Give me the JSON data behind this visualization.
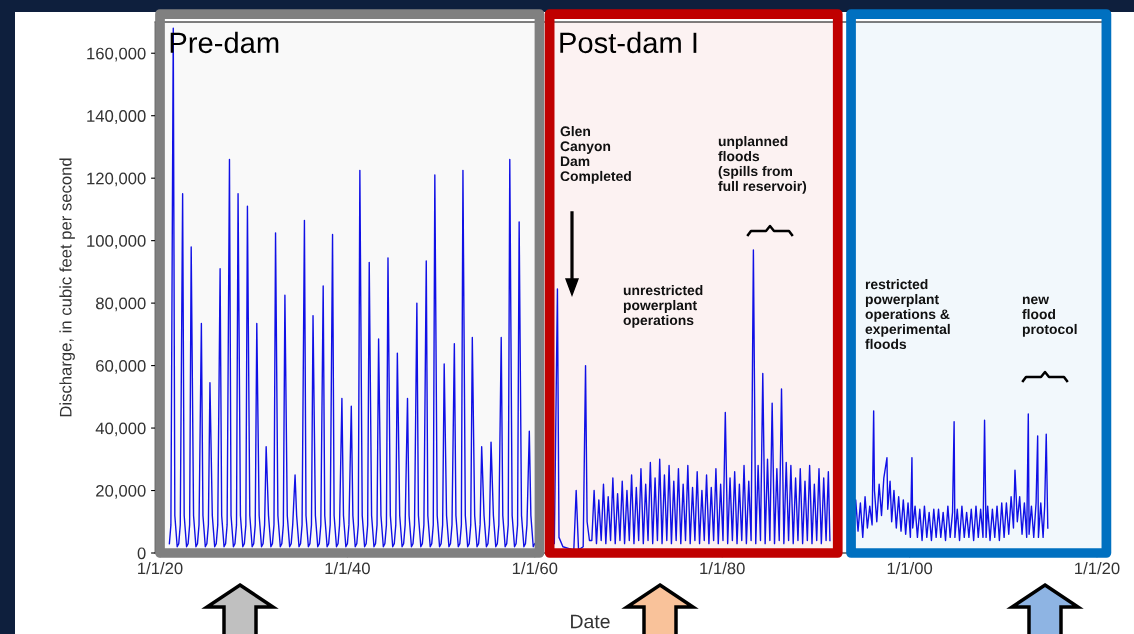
{
  "chart_data": {
    "type": "line",
    "ylabel": "Discharge, in cubic feet per second",
    "xlabel": "Date",
    "xlim": [
      "1919-07-01",
      "2021-03-01"
    ],
    "ylim": [
      0,
      170000
    ],
    "xticks": [
      {
        "value": "1920-01-01",
        "label": "1/1/20"
      },
      {
        "value": "1940-01-01",
        "label": "1/1/40"
      },
      {
        "value": "1960-01-01",
        "label": "1/1/60"
      },
      {
        "value": "1980-01-01",
        "label": "1/1/80"
      },
      {
        "value": "2000-01-01",
        "label": "1/1/00"
      },
      {
        "value": "2020-01-01",
        "label": "1/1/20"
      }
    ],
    "yticks": [
      0,
      {
        "value": 20000,
        "label": "20,000"
      },
      {
        "value": 40000,
        "label": "40,000"
      },
      {
        "value": 60000,
        "label": "60,000"
      },
      {
        "value": 80000,
        "label": "80,000"
      },
      {
        "value": 100000,
        "label": "100,000"
      },
      {
        "value": 120000,
        "label": "120,000"
      },
      {
        "value": 140000,
        "label": "140,000"
      },
      {
        "value": 160000,
        "label": "160,000"
      }
    ],
    "x": [
      "1921-01",
      "1921-03",
      "1921-06",
      "1921-08",
      "1921-11",
      "1922-01",
      "1922-03",
      "1922-06",
      "1922-08",
      "1922-11",
      "1923-01",
      "1923-03",
      "1923-05",
      "1923-08",
      "1923-11",
      "1924-01",
      "1924-03",
      "1924-06",
      "1924-08",
      "1924-11",
      "1925-01",
      "1925-03",
      "1925-05",
      "1925-08",
      "1925-11",
      "1926-01",
      "1926-03",
      "1926-06",
      "1926-08",
      "1926-11",
      "1927-01",
      "1927-03",
      "1927-06",
      "1927-08",
      "1927-11",
      "1928-01",
      "1928-03",
      "1928-05",
      "1928-08",
      "1928-11",
      "1929-01",
      "1929-03",
      "1929-05",
      "1929-08",
      "1929-11",
      "1930-01",
      "1930-03",
      "1930-05",
      "1930-08",
      "1930-11",
      "1931-01",
      "1931-03",
      "1931-05",
      "1931-08",
      "1931-11",
      "1932-01",
      "1932-03",
      "1932-05",
      "1932-08",
      "1932-11",
      "1933-01",
      "1933-03",
      "1933-05",
      "1933-08",
      "1933-11",
      "1934-01",
      "1934-03",
      "1934-06",
      "1934-08",
      "1934-11",
      "1935-01",
      "1935-03",
      "1935-06",
      "1935-08",
      "1935-11",
      "1936-01",
      "1936-03",
      "1936-05",
      "1936-08",
      "1936-11",
      "1937-01",
      "1937-03",
      "1937-06",
      "1937-08",
      "1937-11",
      "1938-01",
      "1938-03",
      "1938-06",
      "1938-08",
      "1938-11",
      "1939-01",
      "1939-03",
      "1939-06",
      "1939-08",
      "1939-11",
      "1940-01",
      "1940-03",
      "1940-06",
      "1940-08",
      "1940-11",
      "1941-01",
      "1941-03",
      "1941-05",
      "1941-08",
      "1941-11",
      "1942-01",
      "1942-03",
      "1942-05",
      "1942-08",
      "1942-11",
      "1943-01",
      "1943-03",
      "1943-05",
      "1943-08",
      "1943-11",
      "1944-01",
      "1944-03",
      "1944-05",
      "1944-08",
      "1944-11",
      "1945-01",
      "1945-03",
      "1945-05",
      "1945-08",
      "1945-11",
      "1946-01",
      "1946-03",
      "1946-06",
      "1946-08",
      "1946-11",
      "1947-01",
      "1947-03",
      "1947-06",
      "1947-08",
      "1947-11",
      "1948-01",
      "1948-03",
      "1948-06",
      "1948-08",
      "1948-11",
      "1949-01",
      "1949-03",
      "1949-05",
      "1949-08",
      "1949-11",
      "1950-01",
      "1950-03",
      "1950-05",
      "1950-08",
      "1950-11",
      "1951-01",
      "1951-03",
      "1951-06",
      "1951-08",
      "1951-11",
      "1952-01",
      "1952-03",
      "1952-05",
      "1952-08",
      "1952-11",
      "1953-01",
      "1953-03",
      "1953-05",
      "1953-08",
      "1953-11",
      "1954-01",
      "1954-03",
      "1954-05",
      "1954-08",
      "1954-11",
      "1955-01",
      "1955-03",
      "1955-05",
      "1955-08",
      "1955-11",
      "1956-01",
      "1956-03",
      "1956-06",
      "1956-08",
      "1956-11",
      "1957-01",
      "1957-03",
      "1957-05",
      "1957-08",
      "1957-11",
      "1958-01",
      "1958-03",
      "1958-05",
      "1958-08",
      "1958-11",
      "1959-01",
      "1959-03",
      "1959-06",
      "1959-08",
      "1959-11",
      "1960-01",
      "1960-03",
      "1960-05",
      "1960-08",
      "1960-11",
      "1961-01",
      "1961-06",
      "1961-08",
      "1961-11",
      "1962-02",
      "1962-06",
      "1962-08",
      "1963-01",
      "1963-08",
      "1964-03",
      "1964-06",
      "1964-09",
      "1965-03",
      "1965-06",
      "1965-08",
      "1965-11",
      "1966-02",
      "1966-05",
      "1966-08",
      "1966-11",
      "1967-02",
      "1967-05",
      "1967-08",
      "1967-11",
      "1968-02",
      "1968-05",
      "1968-08",
      "1968-11",
      "1969-02",
      "1969-05",
      "1969-08",
      "1969-11",
      "1970-02",
      "1970-05",
      "1970-08",
      "1970-11",
      "1971-02",
      "1971-05",
      "1971-08",
      "1971-11",
      "1972-02",
      "1972-05",
      "1972-08",
      "1972-11",
      "1973-02",
      "1973-05",
      "1973-08",
      "1973-11",
      "1974-02",
      "1974-05",
      "1974-08",
      "1974-11",
      "1975-02",
      "1975-05",
      "1975-08",
      "1975-11",
      "1976-02",
      "1976-05",
      "1976-08",
      "1976-11",
      "1977-02",
      "1977-05",
      "1977-08",
      "1977-11",
      "1978-02",
      "1978-05",
      "1978-08",
      "1978-11",
      "1979-02",
      "1979-05",
      "1979-08",
      "1979-11",
      "1980-02",
      "1980-05",
      "1980-08",
      "1980-11",
      "1981-02",
      "1981-05",
      "1981-08",
      "1981-11",
      "1982-02",
      "1982-05",
      "1982-08",
      "1982-11",
      "1983-02",
      "1983-05",
      "1983-08",
      "1983-11",
      "1984-02",
      "1984-05",
      "1984-08",
      "1984-11",
      "1985-02",
      "1985-05",
      "1985-08",
      "1985-11",
      "1986-02",
      "1986-05",
      "1986-08",
      "1986-11",
      "1987-02",
      "1987-05",
      "1987-08",
      "1987-11",
      "1988-02",
      "1988-05",
      "1988-08",
      "1988-11",
      "1989-02",
      "1989-05",
      "1989-08",
      "1989-11",
      "1990-02",
      "1990-05",
      "1990-08",
      "1990-11",
      "1991-02",
      "1991-05",
      "1991-07",
      "1993-01",
      "1994-01",
      "1994-04",
      "1994-07",
      "1994-10",
      "1995-01",
      "1995-04",
      "1995-07",
      "1995-10",
      "1996-01",
      "1996-03",
      "1996-04",
      "1996-07",
      "1996-10",
      "1997-01",
      "1997-04",
      "1997-08",
      "1997-09",
      "1997-12",
      "1998-02",
      "1998-05",
      "1998-08",
      "1998-11",
      "1999-02",
      "1999-05",
      "1999-08",
      "1999-11",
      "2000-02",
      "2000-04",
      "2000-05",
      "2000-08",
      "2000-11",
      "2001-02",
      "2001-05",
      "2001-08",
      "2001-11",
      "2002-02",
      "2002-05",
      "2002-08",
      "2002-11",
      "2003-02",
      "2003-05",
      "2003-08",
      "2003-11",
      "2004-02",
      "2004-05",
      "2004-08",
      "2004-10",
      "2004-11",
      "2005-02",
      "2005-05",
      "2005-08",
      "2005-11",
      "2006-02",
      "2006-05",
      "2006-08",
      "2006-11",
      "2007-02",
      "2007-05",
      "2007-08",
      "2007-11",
      "2008-01",
      "2008-03",
      "2008-05",
      "2008-08",
      "2008-11",
      "2009-02",
      "2009-05",
      "2009-08",
      "2009-11",
      "2010-02",
      "2010-05",
      "2010-08",
      "2010-11",
      "2011-02",
      "2011-04",
      "2011-07",
      "2011-10",
      "2012-01",
      "2012-04",
      "2012-07",
      "2012-09",
      "2012-10",
      "2013-01",
      "2013-04",
      "2013-07",
      "2013-09",
      "2013-10",
      "2014-01",
      "2014-04",
      "2014-06",
      "2014-08",
      "2014-10"
    ],
    "series": [
      {
        "color": "#1010e6",
        "values": [
          3000,
          9000,
          168000,
          12000,
          2000,
          3000,
          9000,
          115000,
          12000,
          2000,
          3000,
          9000,
          98000,
          12000,
          2000,
          3000,
          9000,
          73500,
          12000,
          2000,
          3000,
          9000,
          54500,
          12000,
          2000,
          3000,
          9000,
          91000,
          12000,
          2000,
          3000,
          9000,
          126000,
          12000,
          2000,
          3000,
          9000,
          115000,
          12000,
          2000,
          3000,
          9000,
          111000,
          12000,
          2000,
          3000,
          9000,
          73500,
          12000,
          2000,
          3000,
          9000,
          34000,
          12000,
          2000,
          3000,
          9000,
          102500,
          12000,
          2000,
          3000,
          9000,
          82500,
          12000,
          2000,
          3000,
          9000,
          25000,
          12000,
          2000,
          3000,
          9000,
          106500,
          12000,
          2000,
          3000,
          9000,
          76000,
          12000,
          2000,
          3000,
          9000,
          85500,
          12000,
          2000,
          3000,
          9000,
          102000,
          12000,
          2000,
          3000,
          9000,
          49500,
          12000,
          2000,
          3000,
          9000,
          47000,
          12000,
          2000,
          3000,
          9000,
          122500,
          12000,
          2000,
          3000,
          9000,
          93000,
          12000,
          2000,
          3000,
          9000,
          68500,
          12000,
          2000,
          3000,
          9000,
          94500,
          12000,
          2000,
          3000,
          9000,
          64000,
          12000,
          2000,
          3000,
          9000,
          49500,
          12000,
          2000,
          3000,
          9000,
          80000,
          12000,
          2000,
          3000,
          9000,
          93500,
          12000,
          2000,
          3000,
          9000,
          121000,
          12000,
          2000,
          3000,
          9000,
          60500,
          12000,
          2000,
          3000,
          9000,
          67000,
          12000,
          2000,
          3000,
          9000,
          122500,
          12000,
          2000,
          3000,
          9000,
          69000,
          12000,
          2000,
          3000,
          9000,
          34000,
          12000,
          2000,
          3000,
          9000,
          35500,
          12000,
          2000,
          3000,
          9000,
          69000,
          12000,
          2000,
          3000,
          9000,
          126000,
          12000,
          2000,
          3000,
          9000,
          106000,
          12000,
          2000,
          3000,
          9000,
          39000,
          12000,
          2000,
          3000,
          null,
          null,
          null,
          null,
          null,
          null,
          null,
          null,
          3000,
          84500,
          5000,
          2000,
          1500,
          1000,
          20000,
          1000,
          2000,
          60000,
          10000,
          4000,
          4000,
          20000,
          3000,
          17000,
          4000,
          22000,
          3000,
          18000,
          4000,
          24000,
          3000,
          19000,
          4000,
          23000,
          3000,
          20000,
          4000,
          25000,
          3000,
          21000,
          4000,
          27000,
          3000,
          22000,
          4000,
          29000,
          3000,
          24000,
          4000,
          30000,
          3000,
          25000,
          4000,
          28000,
          3000,
          23000,
          4000,
          27000,
          3000,
          22000,
          4000,
          28000,
          3000,
          21000,
          4000,
          26000,
          3000,
          20000,
          4000,
          25000,
          3000,
          21000,
          4000,
          27000,
          3000,
          22000,
          4000,
          45000,
          3000,
          24000,
          4000,
          26000,
          3000,
          22000,
          4000,
          28000,
          3000,
          23000,
          4000,
          97000,
          3000,
          28000,
          4000,
          57500,
          3000,
          30000,
          4000,
          48000,
          3000,
          27000,
          4000,
          52500,
          3000,
          29000,
          4000,
          28000,
          3000,
          24000,
          4000,
          27000,
          3000,
          23000,
          4000,
          28000,
          3000,
          22000,
          4000,
          27000,
          3000,
          24000,
          4000,
          26000,
          4000,
          null,
          6000,
          17000,
          7000,
          16000,
          5000,
          18000,
          8000,
          15000,
          9000,
          45500,
          20000,
          10000,
          22000,
          12000,
          24000,
          30500,
          14000,
          23000,
          10000,
          20000,
          8000,
          18000,
          7000,
          17000,
          6000,
          16000,
          5000,
          30500,
          8000,
          15000,
          5000,
          14000,
          4000,
          15000,
          5000,
          13000,
          4000,
          14000,
          5000,
          14000,
          5000,
          13000,
          4000,
          15000,
          5000,
          13000,
          42000,
          5000,
          14000,
          4000,
          15000,
          5000,
          13000,
          5000,
          14000,
          4000,
          15000,
          5000,
          14000,
          5000,
          42500,
          5000,
          15000,
          4000,
          14000,
          5000,
          15000,
          4000,
          16000,
          5000,
          16000,
          6000,
          18000,
          8000,
          26500,
          10000,
          18000,
          6000,
          16000,
          5000,
          44500,
          6000,
          15000,
          5000,
          16000,
          37500,
          5000,
          16000,
          5000,
          15000,
          38000,
          8000
        ]
      }
    ],
    "bands": [
      {
        "axis": "x",
        "from": "1920-01-01",
        "to": "1960-07-01",
        "label": "Pre-dam",
        "color": "#808080"
      },
      {
        "axis": "x",
        "from": "1961-08-01",
        "to": "1992-05-01",
        "label": "Post-dam I",
        "color": "#c00000"
      },
      {
        "axis": "x",
        "from": "1993-10-01",
        "to": "2021-01-01",
        "label": null,
        "color": "#0070c0"
      }
    ],
    "annotations": [
      "Glen\nCanyon\nDam\nCompleted",
      "unrestricted\npowerplant\noperations",
      "unplanned\nfloods\n(spills from\nfull reservoir)",
      "restricted\npowerplant\noperations &\nexperimental\nfloods",
      "new\nflood\nprotocol"
    ]
  }
}
